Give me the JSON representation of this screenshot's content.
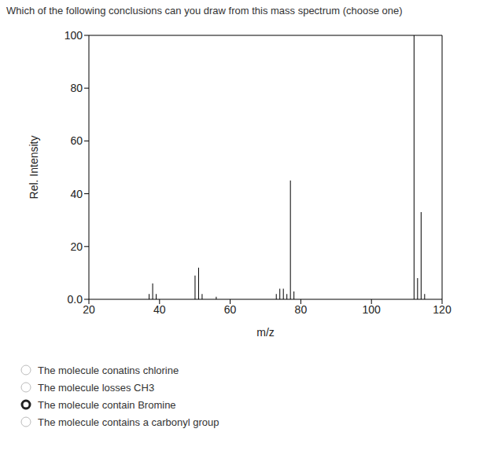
{
  "question": "Which of the following conclusions can you draw from this mass spectrum (choose one)",
  "options": [
    {
      "text": "The molecule conatins chlorine",
      "selected": false
    },
    {
      "text": "The molecule losses CH3",
      "selected": false
    },
    {
      "text": "The molecule contain Bromine",
      "selected": true
    },
    {
      "text": "The molecule contains a carbonyl group",
      "selected": false
    }
  ],
  "chart_data": {
    "type": "bar",
    "x_label": "m/z",
    "y_label": "Rel. Intensity",
    "x": [
      37,
      38,
      39,
      50,
      51,
      52,
      56,
      73,
      74,
      75,
      76,
      77,
      78,
      112,
      113,
      114,
      115
    ],
    "values": [
      2,
      6,
      2,
      9,
      12,
      2,
      1,
      2,
      4,
      4,
      2,
      45,
      3,
      100,
      8,
      33,
      2
    ],
    "color": "#000000",
    "xlim": [
      20,
      120
    ],
    "xticks": [
      20,
      40,
      60,
      80,
      100,
      120
    ],
    "ylim": [
      0,
      100
    ],
    "yticks": [
      {
        "value": 0,
        "label": "0.0"
      },
      20,
      40,
      60,
      80,
      100
    ],
    "grid": false
  }
}
